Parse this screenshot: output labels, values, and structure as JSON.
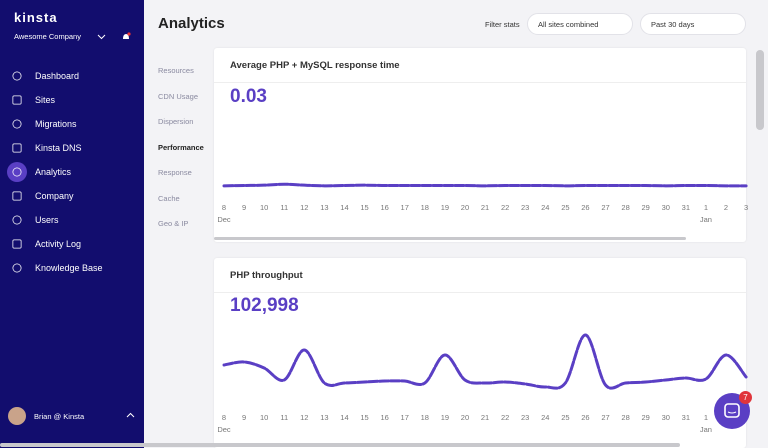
{
  "sidebar": {
    "logo": "kinsta",
    "company": "Awesome Company",
    "menu": [
      "Dashboard",
      "Sites",
      "Migrations",
      "Kinsta DNS",
      "Analytics",
      "Company",
      "Users",
      "Activity Log",
      "Knowledge Base"
    ],
    "active": "Analytics",
    "user": "Brian @ Kinsta"
  },
  "header": {
    "title": "Analytics",
    "filter_label": "Filter stats",
    "site_select": "All sites combined",
    "period_select": "Past 30 days"
  },
  "subnav": {
    "items": [
      "Resources",
      "CDN Usage",
      "Dispersion",
      "Performance",
      "Response",
      "Cache",
      "Geo & IP"
    ],
    "active": "Performance"
  },
  "panels": [
    {
      "title": "Average PHP + MySQL response time",
      "value": "0.03",
      "chart": {
        "type": "line",
        "color": "#5a3fc4",
        "categories": [
          "8",
          "9",
          "10",
          "11",
          "12",
          "13",
          "14",
          "15",
          "16",
          "17",
          "18",
          "19",
          "20",
          "21",
          "22",
          "23",
          "24",
          "25",
          "26",
          "27",
          "28",
          "29",
          "30",
          "31",
          "1",
          "2",
          "3"
        ],
        "months": [
          "Dec",
          null,
          null,
          null,
          null,
          null,
          null,
          null,
          null,
          null,
          null,
          null,
          null,
          null,
          null,
          null,
          null,
          null,
          null,
          null,
          null,
          null,
          null,
          null,
          "Jan",
          null,
          null
        ],
        "values": [
          0.029,
          0.03,
          0.031,
          0.034,
          0.031,
          0.029,
          0.03,
          0.031,
          0.03,
          0.03,
          0.03,
          0.03,
          0.03,
          0.029,
          0.03,
          0.03,
          0.03,
          0.029,
          0.03,
          0.03,
          0.03,
          0.03,
          0.029,
          0.03,
          0.03,
          0.029,
          0.029
        ],
        "ylim": [
          0,
          0.3
        ]
      }
    },
    {
      "title": "PHP throughput",
      "value": "102,998",
      "chart": {
        "type": "line",
        "color": "#5a3fc4",
        "categories": [
          "8",
          "9",
          "10",
          "11",
          "12",
          "13",
          "14",
          "15",
          "16",
          "17",
          "18",
          "19",
          "20",
          "21",
          "22",
          "23",
          "24",
          "25",
          "26",
          "27",
          "28",
          "29",
          "30",
          "31",
          "1",
          "2",
          "3"
        ],
        "months": [
          "Dec",
          null,
          null,
          null,
          null,
          null,
          null,
          null,
          null,
          null,
          null,
          null,
          null,
          null,
          null,
          null,
          null,
          null,
          null,
          null,
          null,
          null,
          null,
          null,
          "Jan",
          null,
          null
        ],
        "values": [
          5000,
          5430,
          4570,
          2860,
          7140,
          2430,
          2430,
          2570,
          2710,
          2710,
          2430,
          6430,
          2860,
          2430,
          2570,
          2290,
          1860,
          2430,
          9290,
          2140,
          2430,
          2570,
          2860,
          3140,
          3000,
          6430,
          3290
        ],
        "ylim": [
          0,
          10000
        ]
      }
    }
  ],
  "chat": {
    "badge": "7"
  }
}
